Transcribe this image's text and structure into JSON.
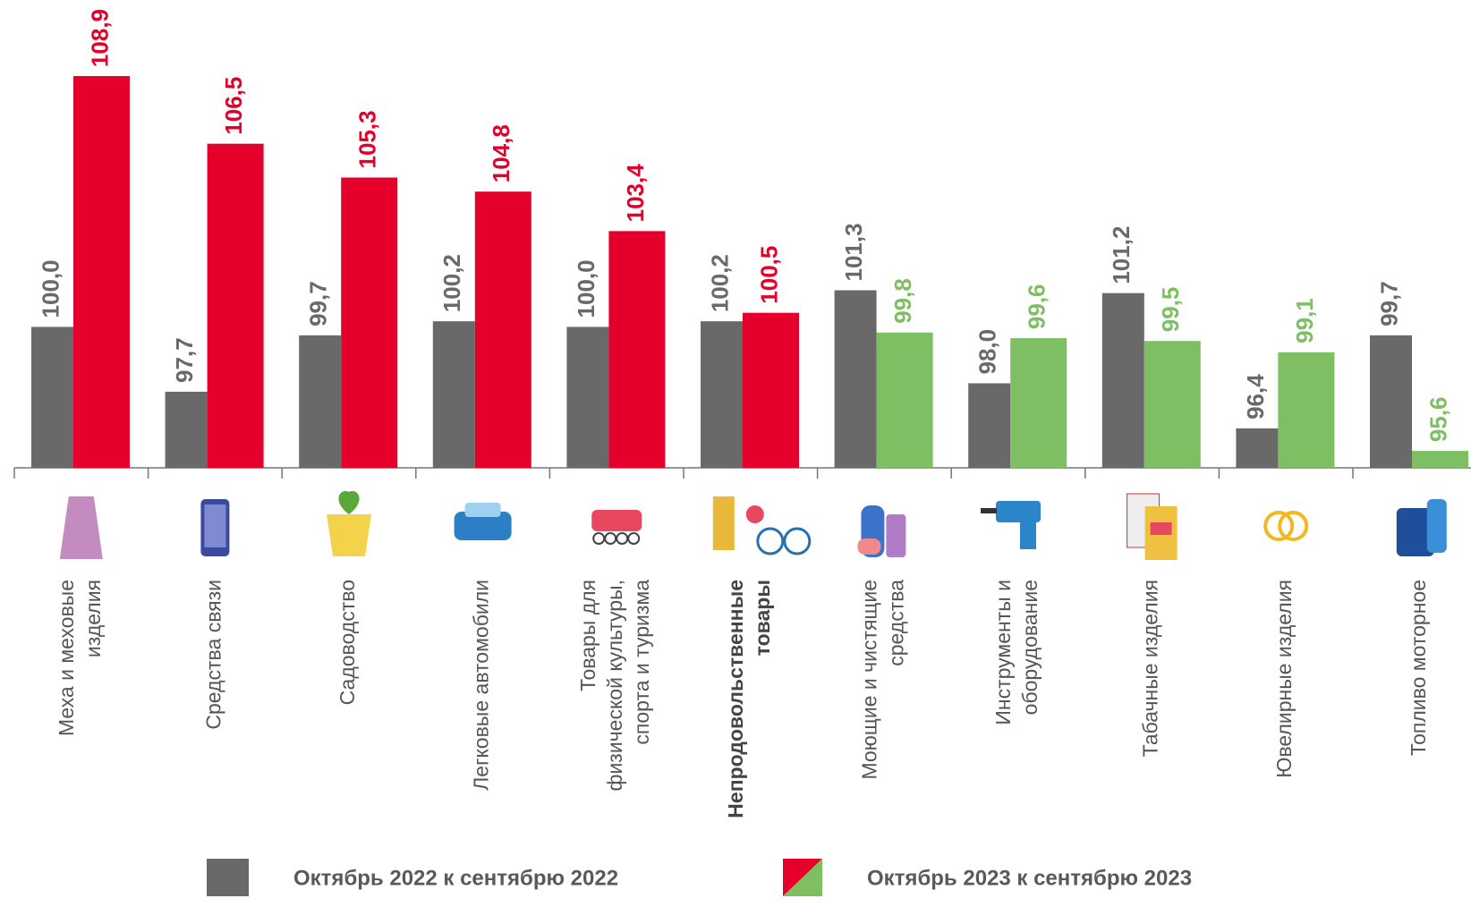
{
  "chart_data": {
    "type": "bar",
    "categories": [
      "Меха и меховые\nизделия",
      "Средства связи",
      "Садоводство",
      "Легковые автомобили",
      "Товары для\nфизической культуры,\nспорта и туризма",
      "Непродовольственные\nтовары",
      "Моющие и чистящие\nсредства",
      "Инструменты и\nоборудование",
      "Табачные изделия",
      "Ювелирные изделия",
      "Топливо моторное"
    ],
    "emphasis_index": 5,
    "series": [
      {
        "name": "Октябрь 2022 к сентябрю 2022",
        "color": "#696969",
        "values": [
          100.0,
          97.7,
          99.7,
          100.2,
          100.0,
          100.2,
          101.3,
          98.0,
          101.2,
          96.4,
          99.7
        ],
        "value_labels": [
          "100,0",
          "97,7",
          "99,7",
          "100,2",
          "100,0",
          "100,2",
          "101,3",
          "98,0",
          "101,2",
          "96,4",
          "99,7"
        ]
      },
      {
        "name": "Октябрь 2023 к сентябрю 2023",
        "colors": [
          "#e4002b",
          "#e4002b",
          "#e4002b",
          "#e4002b",
          "#e4002b",
          "#e4002b",
          "#7dbf62",
          "#7dbf62",
          "#7dbf62",
          "#7dbf62",
          "#7dbf62"
        ],
        "values": [
          108.9,
          106.5,
          105.3,
          104.8,
          103.4,
          100.5,
          99.8,
          99.6,
          99.5,
          99.1,
          95.6
        ],
        "value_labels": [
          "108,9",
          "106,5",
          "105,3",
          "104,8",
          "103,4",
          "100,5",
          "99,8",
          "99,6",
          "99,5",
          "99,1",
          "95,6"
        ]
      }
    ],
    "ylim": [
      95,
      111.6
    ]
  }
}
